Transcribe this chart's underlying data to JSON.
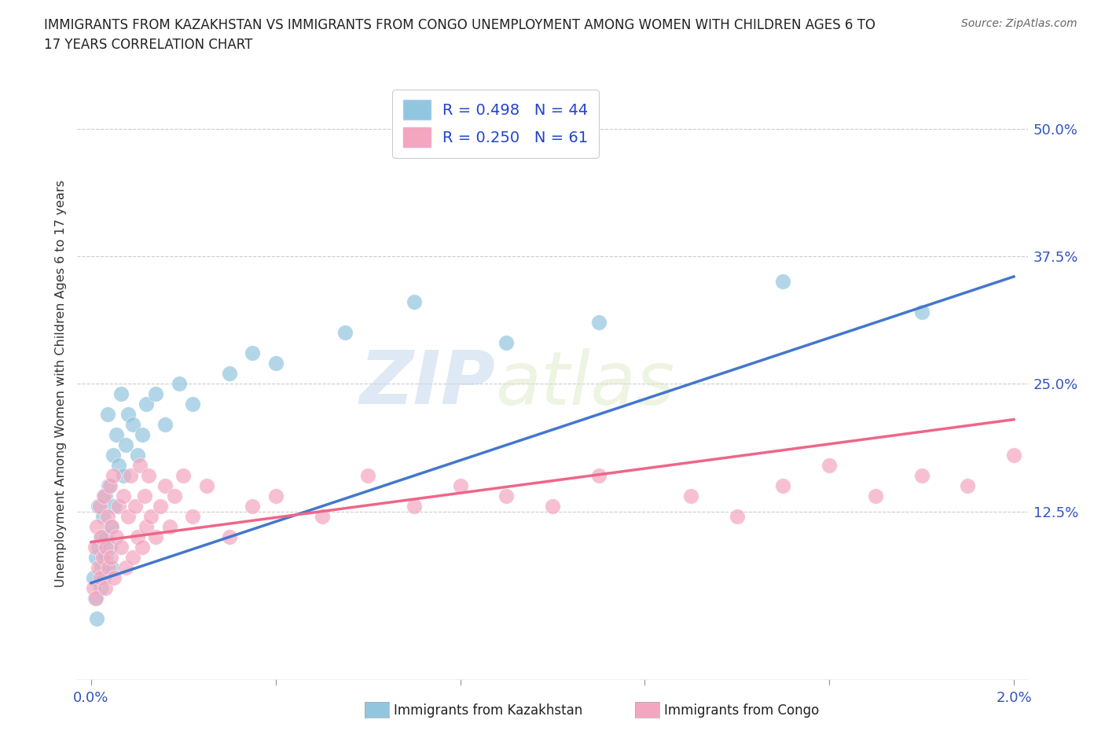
{
  "title": "IMMIGRANTS FROM KAZAKHSTAN VS IMMIGRANTS FROM CONGO UNEMPLOYMENT AMONG WOMEN WITH CHILDREN AGES 6 TO\n17 YEARS CORRELATION CHART",
  "source_text": "Source: ZipAtlas.com",
  "ylabel": "Unemployment Among Women with Children Ages 6 to 17 years",
  "kaz_color": "#92c5de",
  "congo_color": "#f4a6c0",
  "kaz_line_color": "#4477cc",
  "congo_line_color": "#ee6688",
  "kaz_R": 0.498,
  "kaz_N": 44,
  "congo_R": 0.25,
  "congo_N": 61,
  "watermark_text": "ZIP",
  "watermark_text2": "atlas",
  "background_color": "#ffffff",
  "grid_color": "#cccccc",
  "kaz_x": [
    5e-05,
    8e-05,
    0.0001,
    0.00012,
    0.00015,
    0.00015,
    0.0002,
    0.0002,
    0.00022,
    0.00025,
    0.00028,
    0.0003,
    0.0003,
    0.00032,
    0.00035,
    0.00038,
    0.0004,
    0.00042,
    0.00045,
    0.00048,
    0.0005,
    0.00055,
    0.0006,
    0.00065,
    0.0007,
    0.00075,
    0.0008,
    0.0009,
    0.001,
    0.0011,
    0.0012,
    0.0014,
    0.0016,
    0.0019,
    0.0022,
    0.003,
    0.0035,
    0.004,
    0.0055,
    0.007,
    0.009,
    0.011,
    0.015,
    0.018
  ],
  "kaz_y": [
    0.06,
    0.04,
    0.08,
    0.02,
    0.09,
    0.13,
    0.05,
    0.1,
    0.07,
    0.12,
    0.06,
    0.08,
    0.14,
    0.1,
    0.22,
    0.15,
    0.09,
    0.11,
    0.07,
    0.18,
    0.13,
    0.2,
    0.17,
    0.24,
    0.16,
    0.19,
    0.22,
    0.21,
    0.18,
    0.2,
    0.23,
    0.24,
    0.21,
    0.25,
    0.23,
    0.26,
    0.28,
    0.27,
    0.3,
    0.33,
    0.29,
    0.31,
    0.35,
    0.32
  ],
  "congo_x": [
    5e-05,
    8e-05,
    0.0001,
    0.00012,
    0.00015,
    0.00018,
    0.0002,
    0.00022,
    0.00025,
    0.00028,
    0.0003,
    0.00032,
    0.00035,
    0.00038,
    0.0004,
    0.00042,
    0.00045,
    0.00048,
    0.0005,
    0.00055,
    0.0006,
    0.00065,
    0.0007,
    0.00075,
    0.0008,
    0.00085,
    0.0009,
    0.00095,
    0.001,
    0.00105,
    0.0011,
    0.00115,
    0.0012,
    0.00125,
    0.0013,
    0.0014,
    0.0015,
    0.0016,
    0.0017,
    0.0018,
    0.002,
    0.0022,
    0.0025,
    0.003,
    0.0035,
    0.004,
    0.005,
    0.006,
    0.007,
    0.008,
    0.009,
    0.01,
    0.011,
    0.013,
    0.014,
    0.015,
    0.016,
    0.017,
    0.018,
    0.019,
    0.02
  ],
  "congo_y": [
    0.05,
    0.09,
    0.04,
    0.11,
    0.07,
    0.13,
    0.06,
    0.1,
    0.08,
    0.14,
    0.05,
    0.09,
    0.12,
    0.07,
    0.15,
    0.08,
    0.11,
    0.16,
    0.06,
    0.1,
    0.13,
    0.09,
    0.14,
    0.07,
    0.12,
    0.16,
    0.08,
    0.13,
    0.1,
    0.17,
    0.09,
    0.14,
    0.11,
    0.16,
    0.12,
    0.1,
    0.13,
    0.15,
    0.11,
    0.14,
    0.16,
    0.12,
    0.15,
    0.1,
    0.13,
    0.14,
    0.12,
    0.16,
    0.13,
    0.15,
    0.14,
    0.13,
    0.16,
    0.14,
    0.12,
    0.15,
    0.17,
    0.14,
    0.16,
    0.15,
    0.18
  ],
  "xlim": [
    0.0,
    0.02
  ],
  "ylim": [
    -0.04,
    0.54
  ],
  "x_ticks": [
    0.0,
    0.004,
    0.008,
    0.012,
    0.016,
    0.02
  ],
  "y_ticks": [
    0.0,
    0.125,
    0.25,
    0.375,
    0.5
  ],
  "y_tick_labels": [
    "",
    "12.5%",
    "25.0%",
    "37.5%",
    "50.0%"
  ]
}
